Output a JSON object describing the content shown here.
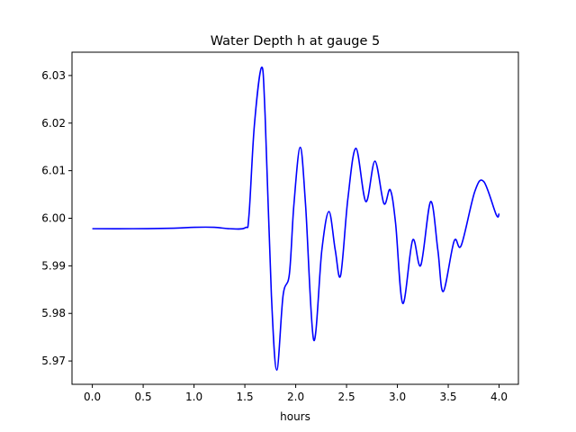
{
  "chart_data": {
    "type": "line",
    "title": "Water Depth h at gauge 5",
    "xlabel": "hours",
    "ylabel": "",
    "xlim": [
      -0.2,
      4.19
    ],
    "ylim": [
      5.9651,
      6.0349
    ],
    "xticks": [
      0.0,
      0.5,
      1.0,
      1.5,
      2.0,
      2.5,
      3.0,
      3.5,
      4.0
    ],
    "xtick_labels": [
      "0.0",
      "0.5",
      "1.0",
      "1.5",
      "2.0",
      "2.5",
      "3.0",
      "3.5",
      "4.0"
    ],
    "yticks": [
      5.97,
      5.98,
      5.99,
      6.0,
      6.01,
      6.02,
      6.03
    ],
    "ytick_labels": [
      "5.97",
      "5.98",
      "5.99",
      "6.00",
      "6.01",
      "6.02",
      "6.03"
    ],
    "grid": false,
    "series": [
      {
        "name": "h",
        "color": "#0000ff",
        "x": [
          0.0,
          0.4,
          0.8,
          1.0,
          1.2,
          1.35,
          1.504,
          1.54,
          1.593,
          1.664,
          1.699,
          1.761,
          1.814,
          1.876,
          1.938,
          1.982,
          2.044,
          2.097,
          2.177,
          2.257,
          2.327,
          2.389,
          2.442,
          2.513,
          2.593,
          2.69,
          2.779,
          2.867,
          2.929,
          2.982,
          3.053,
          3.15,
          3.23,
          3.327,
          3.398,
          3.451,
          3.558,
          3.628,
          3.761,
          3.85,
          3.973,
          4.0
        ],
        "y": [
          5.9978,
          5.9978,
          5.9979,
          5.9981,
          5.9981,
          5.9978,
          5.998,
          6.0005,
          6.0194,
          6.0317,
          6.0217,
          5.9838,
          5.9681,
          5.9838,
          5.9883,
          6.0028,
          6.0149,
          6.0028,
          5.9744,
          5.9933,
          6.0014,
          5.9933,
          5.988,
          6.0041,
          6.0147,
          6.0035,
          6.012,
          6.0031,
          6.006,
          5.999,
          5.9821,
          5.9954,
          5.9901,
          6.0035,
          5.9933,
          5.9846,
          5.9952,
          5.9943,
          6.0056,
          6.0077,
          6.0007,
          6.001
        ]
      }
    ]
  }
}
